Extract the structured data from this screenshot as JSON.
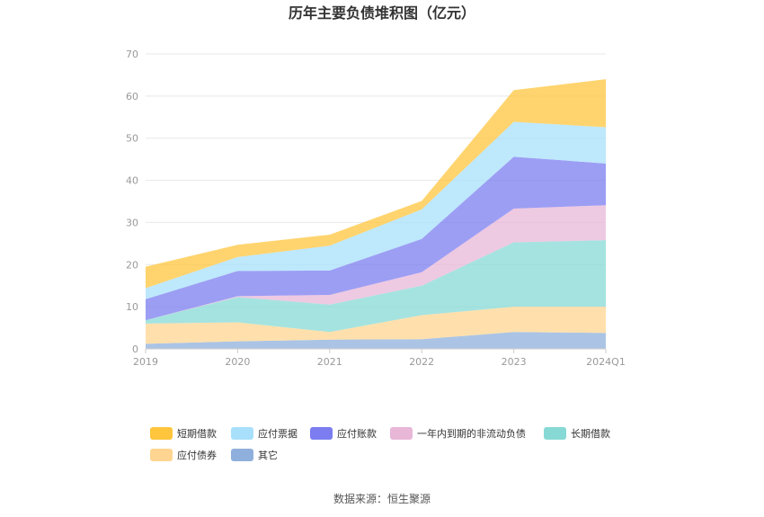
{
  "chart_data": {
    "type": "area",
    "stacked": true,
    "title": "历年主要负债堆积图（亿元）",
    "xlabel": "",
    "ylabel": "",
    "categories": [
      "2019",
      "2020",
      "2021",
      "2022",
      "2023",
      "2024Q1"
    ],
    "ylim": [
      0,
      70
    ],
    "yticks": [
      0,
      10,
      20,
      30,
      40,
      50,
      60,
      70
    ],
    "grid": true,
    "legend_position": "bottom",
    "series": [
      {
        "name": "其它",
        "color": "#8fb0dc",
        "values": [
          1.2,
          1.8,
          2.2,
          2.3,
          4.0,
          3.8
        ]
      },
      {
        "name": "应付债券",
        "color": "#ffd591",
        "values": [
          4.8,
          4.5,
          1.8,
          5.7,
          6.0,
          6.2
        ]
      },
      {
        "name": "长期借款",
        "color": "#87d9d5",
        "values": [
          0.8,
          6.0,
          6.5,
          7.0,
          15.3,
          15.8
        ]
      },
      {
        "name": "一年内到期的非流动负债",
        "color": "#e8b7d8",
        "values": [
          0.0,
          0.2,
          2.3,
          3.2,
          8.0,
          8.3
        ]
      },
      {
        "name": "应付账款",
        "color": "#7b7df0",
        "values": [
          5.0,
          6.0,
          5.8,
          7.9,
          12.3,
          9.9
        ]
      },
      {
        "name": "应付票据",
        "color": "#a8e0fb",
        "values": [
          2.6,
          3.3,
          5.9,
          7.0,
          8.3,
          8.6
        ]
      },
      {
        "name": "短期借款",
        "color": "#ffc53d",
        "values": [
          5.1,
          2.9,
          2.6,
          2.0,
          7.5,
          11.4
        ]
      }
    ],
    "legend_order": [
      "短期借款",
      "应付票据",
      "应付账款",
      "一年内到期的非流动负债",
      "长期借款",
      "应付债券",
      "其它"
    ]
  },
  "footer": {
    "source": "数据来源：恒生聚源"
  }
}
